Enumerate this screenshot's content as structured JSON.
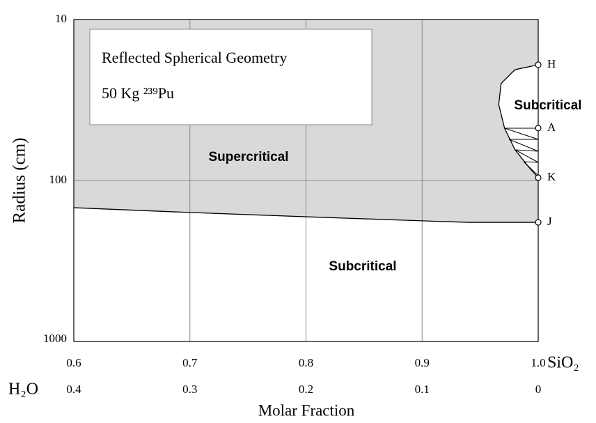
{
  "chart_data": {
    "type": "line",
    "annotation_lines": [
      "Reflected Spherical Geometry",
      "50 Kg ²³⁹Pu"
    ],
    "region_labels": [
      "Supercritical",
      "Subcritical",
      "Subcritical"
    ],
    "y_label": "Radius (cm)",
    "x_label": "Molar Fraction",
    "x_axis_name": "SiO₂",
    "x2_axis_name": "H₂O",
    "xlim": [
      0.6,
      1.0
    ],
    "xticks": [
      0.6,
      0.7,
      0.8,
      0.9,
      {
        "value": 1.0,
        "label": "1.0"
      }
    ],
    "x2lim": [
      0.4,
      0
    ],
    "x2ticks": [
      0.4,
      0.3,
      0.2,
      0.1,
      0
    ],
    "ylim": [
      10,
      1000
    ],
    "yticks": [
      10,
      100,
      1000
    ],
    "ylog": true,
    "yinverted": true,
    "grid": true,
    "series": [
      {
        "name": "Supercritical boundary",
        "color": "#000000",
        "x": [
          0.6,
          0.7,
          0.8,
          0.9,
          0.94,
          1.0
        ],
        "values": [
          147.6,
          158,
          168,
          178,
          182,
          182
        ]
      },
      {
        "name": "Subcritical region",
        "color": "#000000",
        "x": [
          1.0,
          0.98,
          0.968,
          0.966,
          0.971,
          0.98,
          0.992,
          1.0
        ],
        "values": [
          19.1,
          20.5,
          25,
          33.7,
          47.3,
          64.4,
          82.8,
          96.1
        ]
      }
    ],
    "points": [
      {
        "label": "H",
        "x": 1.0,
        "y": 19.1
      },
      {
        "label": "A",
        "x": 1.0,
        "y": 47.3
      },
      {
        "label": "K",
        "x": 1.0,
        "y": 96.1
      },
      {
        "label": "J",
        "x": 1.0,
        "y": 182
      }
    ]
  }
}
